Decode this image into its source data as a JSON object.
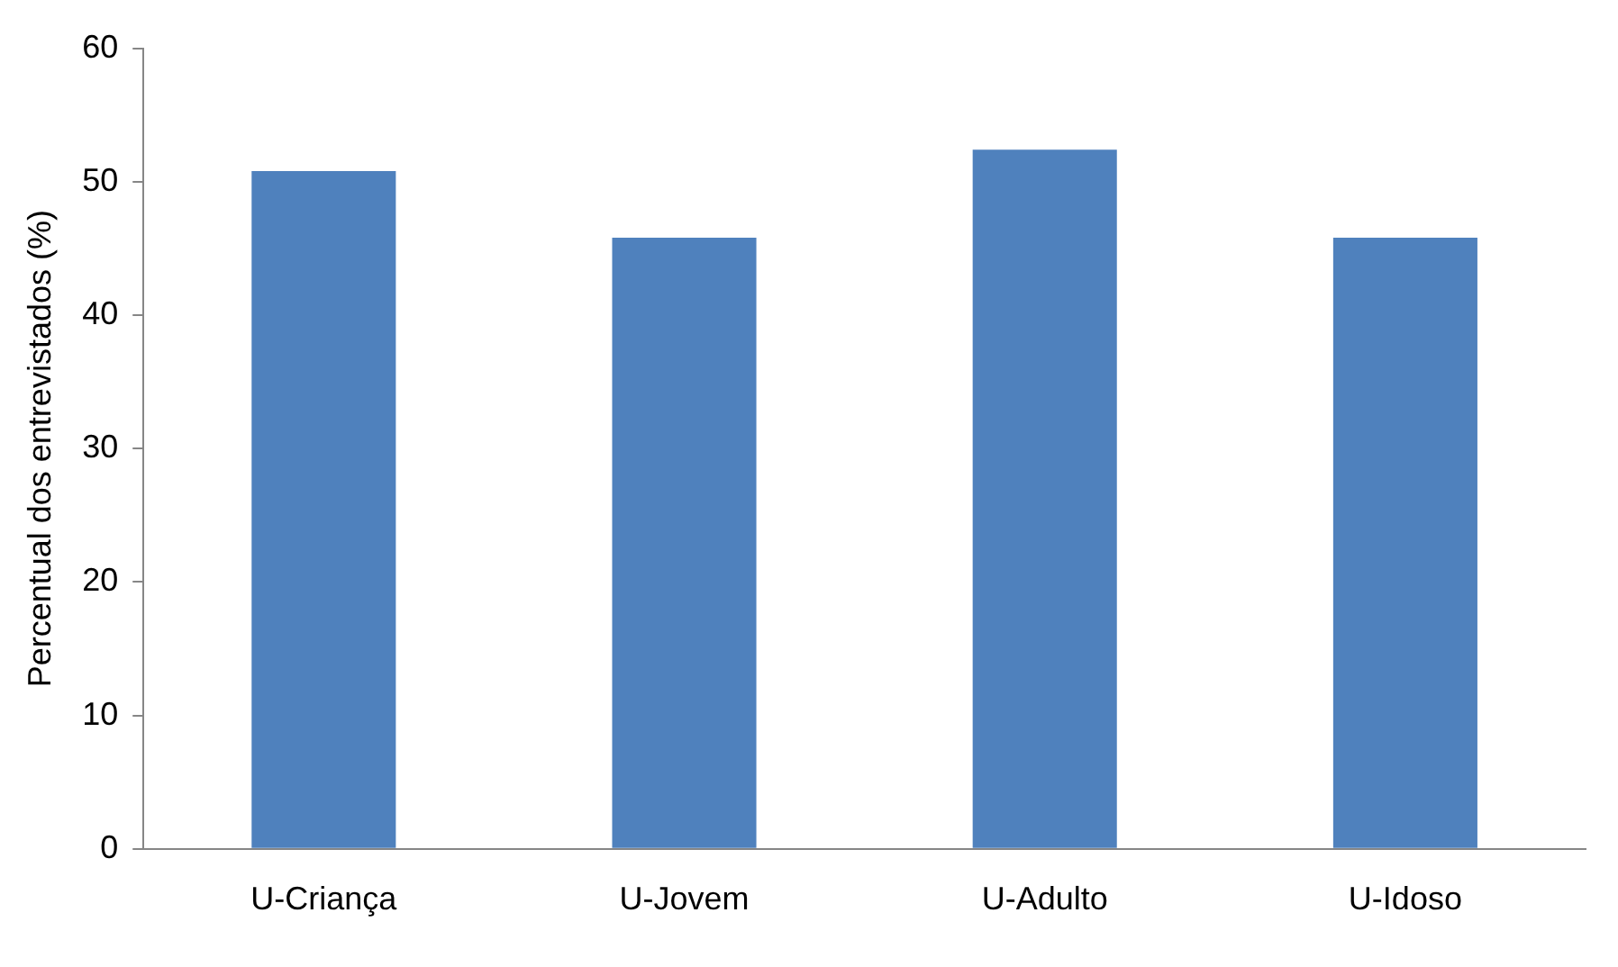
{
  "chart_data": {
    "type": "bar",
    "ylabel": "Percentual dos entrevistados (%)",
    "categories": [
      "U-Criança",
      "U-Jovem",
      "U-Adulto",
      "U-Idoso"
    ],
    "values": [
      50.8,
      45.8,
      52.4,
      45.8
    ],
    "color": "#4f81bd",
    "ylim": [
      0,
      60
    ],
    "yticks": [
      0,
      10,
      20,
      30,
      40,
      50,
      60
    ],
    "grid": false,
    "legend": false
  }
}
